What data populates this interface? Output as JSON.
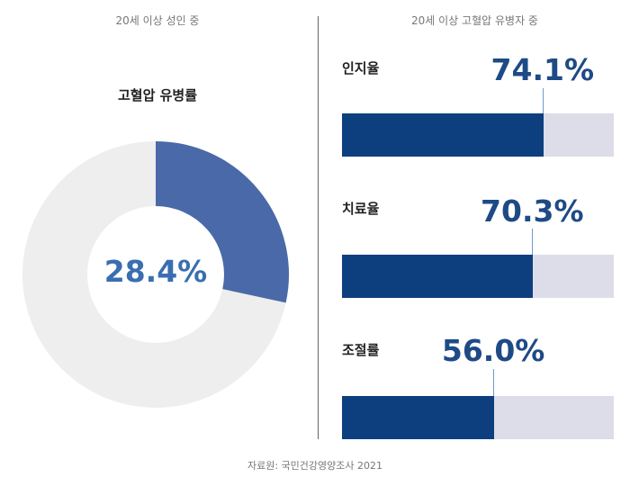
{
  "left_panel": {
    "subtitle": "20세 이상 성인 중"
  },
  "right_panel": {
    "subtitle": "20세 이상 고혈압 유병자 중"
  },
  "colors": {
    "donut_fill": "#4a69a8",
    "donut_track": "#eeeeee",
    "donut_center_text": "#3a6eb0",
    "bar_fill": "#0d3f7f",
    "bar_track": "#dcdde8",
    "value_text": "#1e4a86"
  },
  "chart_data": [
    {
      "type": "pie",
      "title": "고혈압 유병률",
      "values": [
        28.4
      ],
      "center_label": "28.4%",
      "unit": "%"
    },
    {
      "type": "bar",
      "orientation": "horizontal",
      "categories": [
        "인지율",
        "치료율",
        "조절률"
      ],
      "values": [
        74.1,
        70.3,
        56.0
      ],
      "value_labels": [
        "74.1%",
        "70.3%",
        "56.0%"
      ],
      "xlim": [
        0,
        100
      ],
      "unit": "%"
    }
  ],
  "source": "자료원: 국민건강영양조사 2021"
}
